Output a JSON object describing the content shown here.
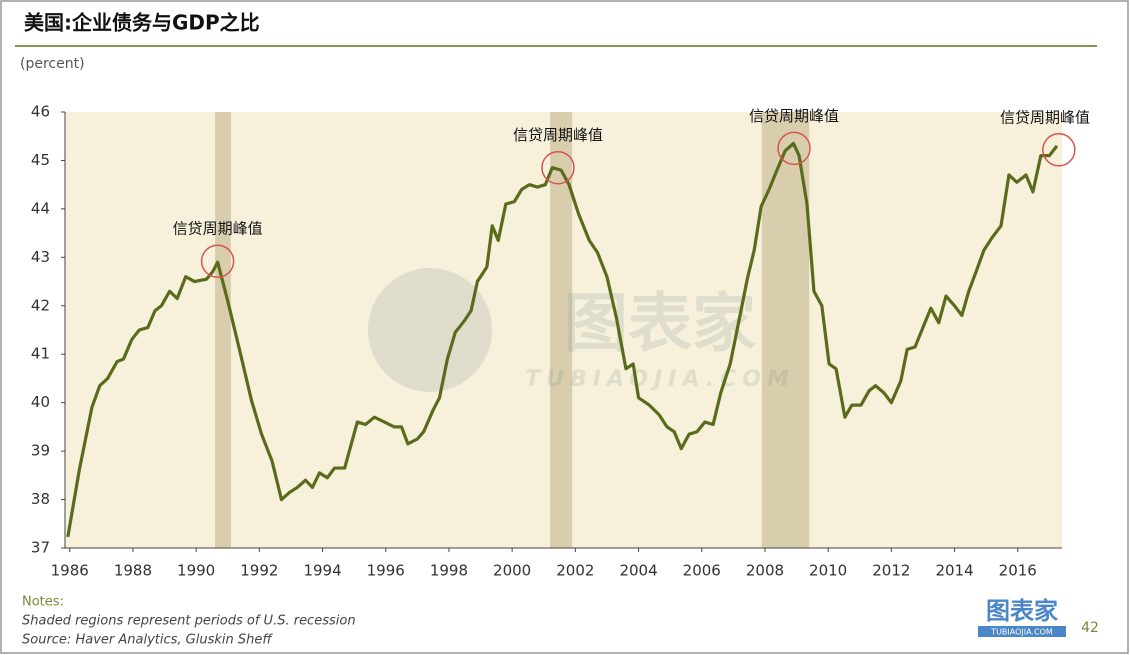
{
  "chart_data": {
    "type": "line",
    "title": "美国:企业债务与GDP之比",
    "y_axis_label": "(percent)",
    "xlim": [
      1985.85,
      2017.4
    ],
    "ylim": [
      37,
      46
    ],
    "xticks": [
      1986,
      1988,
      1990,
      1992,
      1994,
      1996,
      1998,
      2000,
      2002,
      2004,
      2006,
      2008,
      2010,
      2012,
      2014,
      2016
    ],
    "yticks": [
      37,
      38,
      39,
      40,
      41,
      42,
      43,
      44,
      45,
      46
    ],
    "recessions": [
      [
        1990.6,
        1991.1
      ],
      [
        2001.2,
        2001.9
      ],
      [
        2007.9,
        2009.4
      ]
    ],
    "recession_color": "#d8ceae",
    "background": "#f7f0da",
    "x": [
      1985.94,
      1986.3,
      1986.7,
      1986.95,
      1987.2,
      1987.5,
      1987.7,
      1987.96,
      1988.2,
      1988.47,
      1988.7,
      1988.9,
      1989.16,
      1989.4,
      1989.67,
      1989.95,
      1990.33,
      1990.52,
      1990.68,
      1991.0,
      1991.37,
      1991.75,
      1992.07,
      1992.4,
      1992.7,
      1992.96,
      1993.2,
      1993.46,
      1993.68,
      1993.9,
      1994.15,
      1994.38,
      1994.7,
      1995.1,
      1995.36,
      1995.64,
      1995.96,
      1996.27,
      1996.5,
      1996.7,
      1997.0,
      1997.2,
      1997.5,
      1997.7,
      1997.95,
      1998.2,
      1998.5,
      1998.7,
      1998.9,
      1999.2,
      1999.37,
      1999.56,
      1999.8,
      2000.07,
      2000.3,
      2000.55,
      2000.8,
      2001.05,
      2001.27,
      2001.55,
      2001.8,
      2002.1,
      2002.44,
      2002.7,
      2003.0,
      2003.3,
      2003.6,
      2003.83,
      2004.0,
      2004.34,
      2004.65,
      2004.9,
      2005.13,
      2005.35,
      2005.6,
      2005.85,
      2006.1,
      2006.36,
      2006.6,
      2006.9,
      2007.18,
      2007.44,
      2007.66,
      2007.88,
      2008.13,
      2008.38,
      2008.64,
      2008.9,
      2009.08,
      2009.33,
      2009.55,
      2009.8,
      2010.03,
      2010.25,
      2010.53,
      2010.75,
      2011.04,
      2011.3,
      2011.5,
      2011.77,
      2012.0,
      2012.3,
      2012.5,
      2012.75,
      2013.03,
      2013.25,
      2013.5,
      2013.73,
      2014.0,
      2014.23,
      2014.45,
      2014.68,
      2014.93,
      2015.18,
      2015.47,
      2015.72,
      2015.97,
      2016.26,
      2016.48,
      2016.73,
      2017.0,
      2017.24
    ],
    "series": [
      {
        "color": "#5b6b1c",
        "values": [
          37.23,
          38.6,
          39.9,
          40.35,
          40.5,
          40.85,
          40.9,
          41.3,
          41.5,
          41.55,
          41.9,
          42.0,
          42.3,
          42.15,
          42.6,
          42.5,
          42.55,
          42.7,
          42.9,
          42.1,
          41.1,
          40.05,
          39.35,
          38.8,
          38.0,
          38.15,
          38.25,
          38.4,
          38.25,
          38.55,
          38.45,
          38.65,
          38.65,
          39.6,
          39.55,
          39.7,
          39.6,
          39.5,
          39.5,
          39.15,
          39.25,
          39.4,
          39.85,
          40.1,
          40.9,
          41.45,
          41.7,
          41.9,
          42.5,
          42.8,
          43.65,
          43.35,
          44.1,
          44.15,
          44.4,
          44.5,
          44.45,
          44.5,
          44.85,
          44.8,
          44.5,
          43.9,
          43.35,
          43.1,
          42.6,
          41.75,
          40.7,
          40.8,
          40.1,
          39.95,
          39.75,
          39.5,
          39.4,
          39.05,
          39.35,
          39.4,
          39.6,
          39.55,
          40.2,
          40.8,
          41.7,
          42.55,
          43.15,
          44.05,
          44.4,
          44.8,
          45.2,
          45.35,
          45.1,
          44.1,
          42.3,
          42.0,
          40.8,
          40.7,
          39.7,
          39.95,
          39.95,
          40.25,
          40.35,
          40.2,
          40.0,
          40.45,
          41.1,
          41.15,
          41.6,
          41.95,
          41.65,
          42.2,
          42.0,
          41.8,
          42.3,
          42.7,
          43.15,
          43.4,
          43.65,
          44.7,
          44.55,
          44.7,
          44.35,
          45.1,
          45.1,
          45.3
        ]
      }
    ],
    "annotations": [
      {
        "text": "信贷周期峰值",
        "x": 1990.68,
        "y": 42.92
      },
      {
        "text": "信贷周期峰值",
        "x": 2001.45,
        "y": 44.85
      },
      {
        "text": "信贷周期峰值",
        "x": 2008.92,
        "y": 45.25
      },
      {
        "text": "信贷周期峰值",
        "x": 2017.3,
        "y": 45.22
      }
    ],
    "notes_heading": "Notes:",
    "notes": [
      "Shaded regions represent periods of U.S. recession",
      "Source: Haver Analytics, Gluskin Sheff"
    ],
    "page_number": "42",
    "watermark": {
      "main": "图表家",
      "sub": "TUBIAOJIA.COM"
    },
    "logo": {
      "main": "图表家",
      "sub": "TUBIAOJIA.COM"
    }
  }
}
